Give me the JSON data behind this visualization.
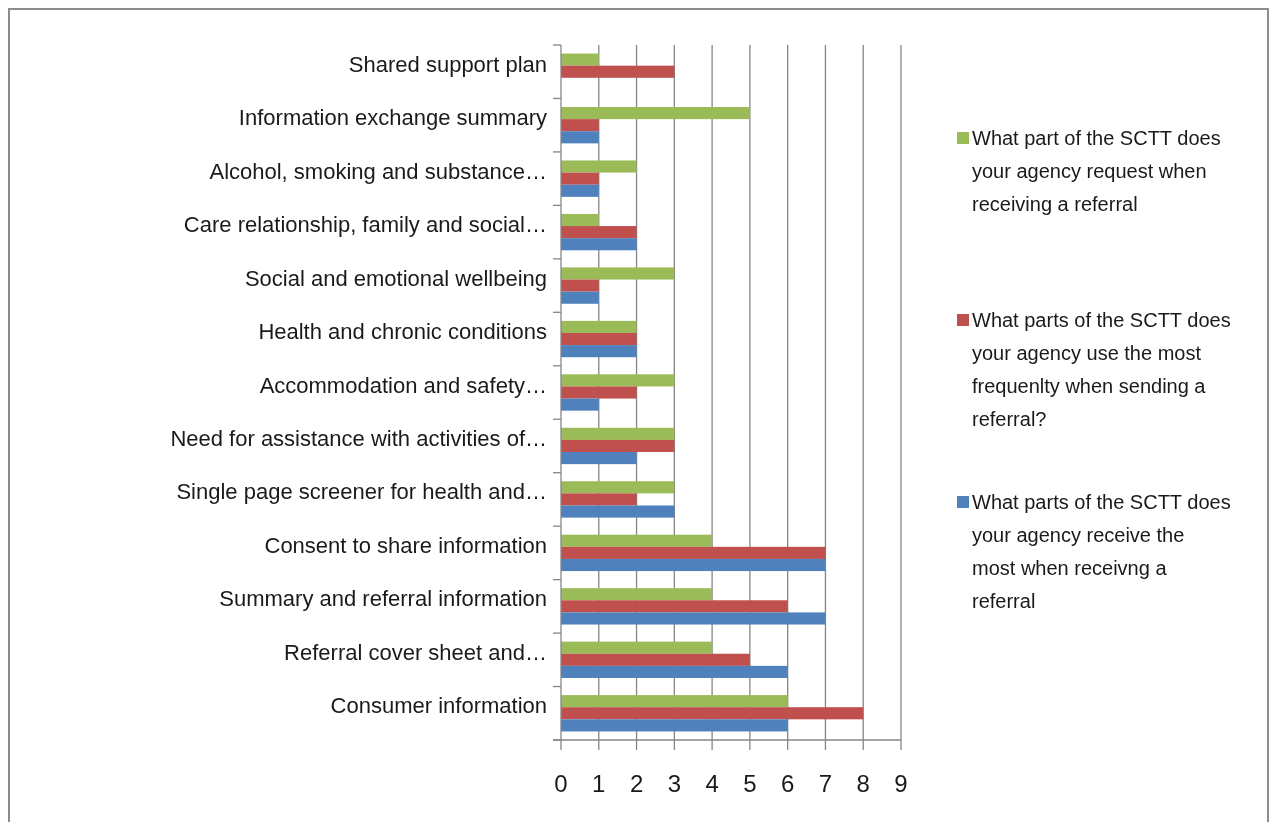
{
  "chart_data": {
    "type": "bar",
    "orientation": "horizontal",
    "categories": [
      "Shared support plan",
      "Information exchange summary",
      "Alcohol, smoking and substance…",
      "Care relationship, family and social…",
      "Social and emotional wellbeing",
      "Health and chronic conditions",
      "Accommodation and safety…",
      "Need for assistance with activities of…",
      "Single page screener for health and…",
      "Consent to share information",
      "Summary and referral information",
      "Referral cover sheet and…",
      "Consumer information"
    ],
    "series": [
      {
        "name": "What part of the SCTT does your agency request when receiving a referral",
        "color": "#9bbb59",
        "values": [
          1,
          5,
          2,
          1,
          3,
          2,
          3,
          3,
          3,
          4,
          4,
          4,
          6
        ]
      },
      {
        "name": "What parts of the SCTT does your agency use the most frequenlty when sending a referral?",
        "color": "#c0504d",
        "values": [
          3,
          1,
          1,
          2,
          1,
          2,
          2,
          3,
          2,
          7,
          6,
          5,
          8
        ]
      },
      {
        "name": "What parts of the SCTT does your agency receive the most when receivng a referral",
        "color": "#4f81bd",
        "values": [
          null,
          1,
          1,
          2,
          1,
          2,
          1,
          2,
          3,
          7,
          7,
          6,
          6
        ]
      }
    ],
    "xlim": [
      0,
      9
    ],
    "xticks": [
      0,
      1,
      2,
      3,
      4,
      5,
      6,
      7,
      8,
      9
    ],
    "grid": "x",
    "legend": "right"
  }
}
